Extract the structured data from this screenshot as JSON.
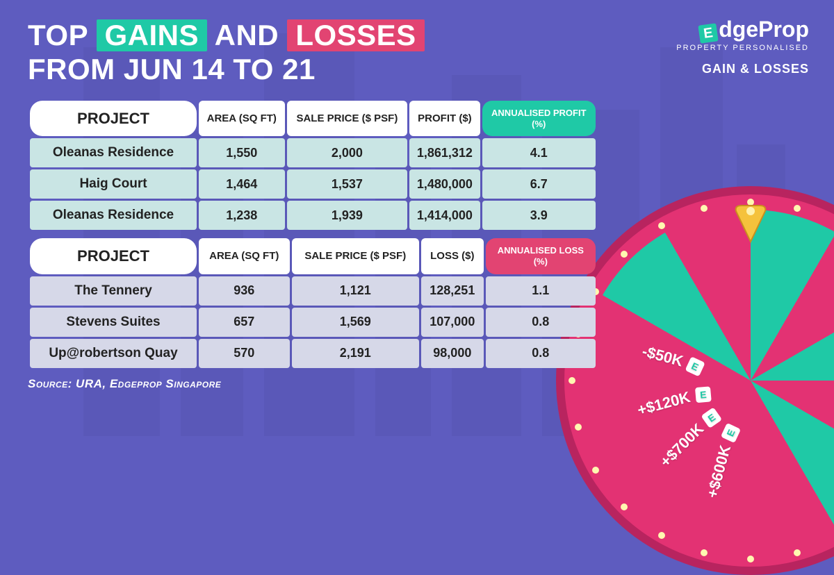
{
  "colors": {
    "background": "#5e5cbf",
    "gains_chip": "#1fc9a6",
    "losses_chip": "#e24472",
    "gains_row": "#c9e5e4",
    "losses_row": "#d6d8e8",
    "wheel_rim": "#b8245f",
    "wheel_track": "#e33273",
    "slice_teal": "#1fc9a6",
    "slice_pink": "#e33273"
  },
  "title": {
    "pre": "TOP",
    "gains": "GAINS",
    "mid": "AND",
    "losses": "LOSSES",
    "line2": "FROM JUN 14 TO 21"
  },
  "brand": {
    "name_suffix": "dgeProp",
    "tagline": "PROPERTY PERSONALISED",
    "section": "GAIN & LOSSES"
  },
  "gains_table": {
    "columns": [
      "PROJECT",
      "AREA (SQ FT)",
      "SALE PRICE ($ PSF)",
      "PROFIT ($)",
      "ANNUALISED PROFIT (%)"
    ],
    "annualised_color": "#1fc9a6",
    "row_bg": "#c9e5e4",
    "rows": [
      {
        "project": "Oleanas Residence",
        "area": "1,550",
        "price": "2,000",
        "profit": "1,861,312",
        "ann": "4.1"
      },
      {
        "project": "Haig Court",
        "area": "1,464",
        "price": "1,537",
        "profit": "1,480,000",
        "ann": "6.7"
      },
      {
        "project": "Oleanas Residence",
        "area": "1,238",
        "price": "1,939",
        "profit": "1,414,000",
        "ann": "3.9"
      }
    ]
  },
  "losses_table": {
    "columns": [
      "PROJECT",
      "AREA (SQ FT)",
      "SALE PRICE ($ PSF)",
      "LOSS ($)",
      "ANNUALISED LOSS (%)"
    ],
    "annualised_color": "#e24472",
    "row_bg": "#d6d8e8",
    "rows": [
      {
        "project": "The Tennery",
        "area": "936",
        "price": "1,121",
        "profit": "128,251",
        "ann": "1.1"
      },
      {
        "project": "Stevens Suites",
        "area": "657",
        "price": "1,569",
        "profit": "107,000",
        "ann": "0.8"
      },
      {
        "project": "Up@robertson Quay",
        "area": "570",
        "price": "2,191",
        "profit": "98,000",
        "ann": "0.8"
      }
    ]
  },
  "source": "Source: URA, Edgeprop Singapore",
  "wheel": {
    "slices": [
      {
        "label": "+$600K",
        "color": "#1fc9a6",
        "angle": -75
      },
      {
        "label": "+$700K",
        "color": "#e33273",
        "angle": -45
      },
      {
        "label": "+$120K",
        "color": "#1fc9a6",
        "angle": -15
      },
      {
        "label": "-$50K",
        "color": "#e33273",
        "angle": 15
      }
    ]
  }
}
